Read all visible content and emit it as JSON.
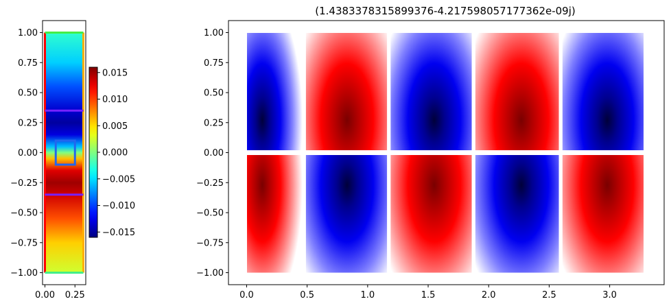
{
  "chart_data": [
    {
      "type": "heatmap",
      "subtype": "colormap-field",
      "colormap": "jet",
      "xlim": [
        -0.02,
        0.34
      ],
      "ylim": [
        -1.1,
        1.1
      ],
      "x_extent": [
        0.0,
        0.32
      ],
      "y_extent": [
        -1.0,
        1.0
      ],
      "x_ticks": [
        0.0,
        0.25
      ],
      "x_tick_labels": [
        "0.00",
        "0.25"
      ],
      "y_ticks": [
        1.0,
        0.75,
        0.5,
        0.25,
        0.0,
        -0.25,
        -0.5,
        -0.75,
        -1.0
      ],
      "y_tick_labels": [
        "1.00",
        "0.75",
        "0.50",
        "0.25",
        "0.00",
        "−0.25",
        "−0.50",
        "−0.75",
        "−1.00"
      ],
      "profile": [
        {
          "y": 1.0,
          "value": -0.0025
        },
        {
          "y": 0.75,
          "value": -0.0055
        },
        {
          "y": 0.55,
          "value": -0.0095
        },
        {
          "y": 0.35,
          "value": -0.0135
        },
        {
          "y": 0.25,
          "value": -0.015
        },
        {
          "y": 0.15,
          "value": -0.013
        },
        {
          "y": 0.05,
          "value": -0.006
        },
        {
          "y": 0.0,
          "value": 0.0
        },
        {
          "y": -0.05,
          "value": 0.006
        },
        {
          "y": -0.15,
          "value": 0.013
        },
        {
          "y": -0.25,
          "value": 0.015
        },
        {
          "y": -0.35,
          "value": 0.0135
        },
        {
          "y": -0.55,
          "value": 0.0095
        },
        {
          "y": -0.75,
          "value": 0.0055
        },
        {
          "y": -1.0,
          "value": 0.0025
        }
      ],
      "overlays": [
        {
          "kind": "line",
          "color": "#ff0000",
          "x": [
            0.0,
            0.0
          ],
          "y": [
            -1.0,
            1.0
          ]
        },
        {
          "kind": "line",
          "color": "#ffb000",
          "x": [
            0.32,
            0.32
          ],
          "y": [
            -1.0,
            1.0
          ]
        },
        {
          "kind": "line",
          "color": "#44ee44",
          "x": [
            0.0,
            0.32
          ],
          "y": [
            1.0,
            1.0
          ]
        },
        {
          "kind": "line",
          "color": "#44ee88",
          "x": [
            0.0,
            0.32
          ],
          "y": [
            -1.0,
            -1.0
          ]
        },
        {
          "kind": "line",
          "color": "#7722ff",
          "x": [
            0.0,
            0.32
          ],
          "y": [
            0.35,
            0.35
          ]
        },
        {
          "kind": "line",
          "color": "#7722ff",
          "x": [
            0.0,
            0.32
          ],
          "y": [
            -0.35,
            -0.35
          ]
        },
        {
          "kind": "rect",
          "color": "#2266ee",
          "x": [
            0.09,
            0.25
          ],
          "y": [
            -0.1,
            0.1
          ]
        }
      ],
      "colorbar": {
        "colormap": "jet",
        "range": [
          -0.016,
          0.016
        ],
        "ticks": [
          0.015,
          0.01,
          0.005,
          0.0,
          -0.005,
          -0.01,
          -0.015
        ],
        "tick_labels": [
          "0.015",
          "0.010",
          "0.005",
          "0.000",
          "−0.005",
          "−0.010",
          "−0.015"
        ]
      }
    },
    {
      "type": "heatmap",
      "subtype": "colormap-field",
      "colormap": "seismic",
      "title": "(1.4383378315899376-4.217598057177362e-09j)",
      "xlim": [
        -0.15,
        3.45
      ],
      "ylim": [
        -1.1,
        1.1
      ],
      "x_ticks": [
        0.0,
        0.5,
        1.0,
        1.5,
        2.0,
        2.5,
        3.0
      ],
      "x_tick_labels": [
        "0.0",
        "0.5",
        "1.0",
        "1.5",
        "2.0",
        "2.5",
        "3.0"
      ],
      "y_ticks": [
        1.0,
        0.75,
        0.5,
        0.25,
        0.0,
        -0.25,
        -0.5,
        -0.75,
        -1.0
      ],
      "y_tick_labels": [
        "1.00",
        "0.75",
        "0.50",
        "0.25",
        "0.00",
        "−0.25",
        "−0.50",
        "−0.75",
        "−1.00"
      ],
      "lobes": [
        {
          "x_range": [
            0.0,
            0.46
          ],
          "center": [
            0.13,
            0.27
          ],
          "sign_upper": -1
        },
        {
          "x_range": [
            0.49,
            1.16
          ],
          "center": [
            0.83,
            0.27
          ],
          "sign_upper": 1
        },
        {
          "x_range": [
            1.19,
            1.86
          ],
          "center": [
            1.55,
            0.27
          ],
          "sign_upper": -1
        },
        {
          "x_range": [
            1.89,
            2.58
          ],
          "center": [
            2.27,
            0.27
          ],
          "sign_upper": 1
        },
        {
          "x_range": [
            2.61,
            3.28
          ],
          "center": [
            2.98,
            0.27
          ],
          "sign_upper": -1
        }
      ],
      "y_extent": [
        -1.0,
        1.0
      ],
      "gap_y": [
        -0.02,
        0.02
      ]
    }
  ]
}
